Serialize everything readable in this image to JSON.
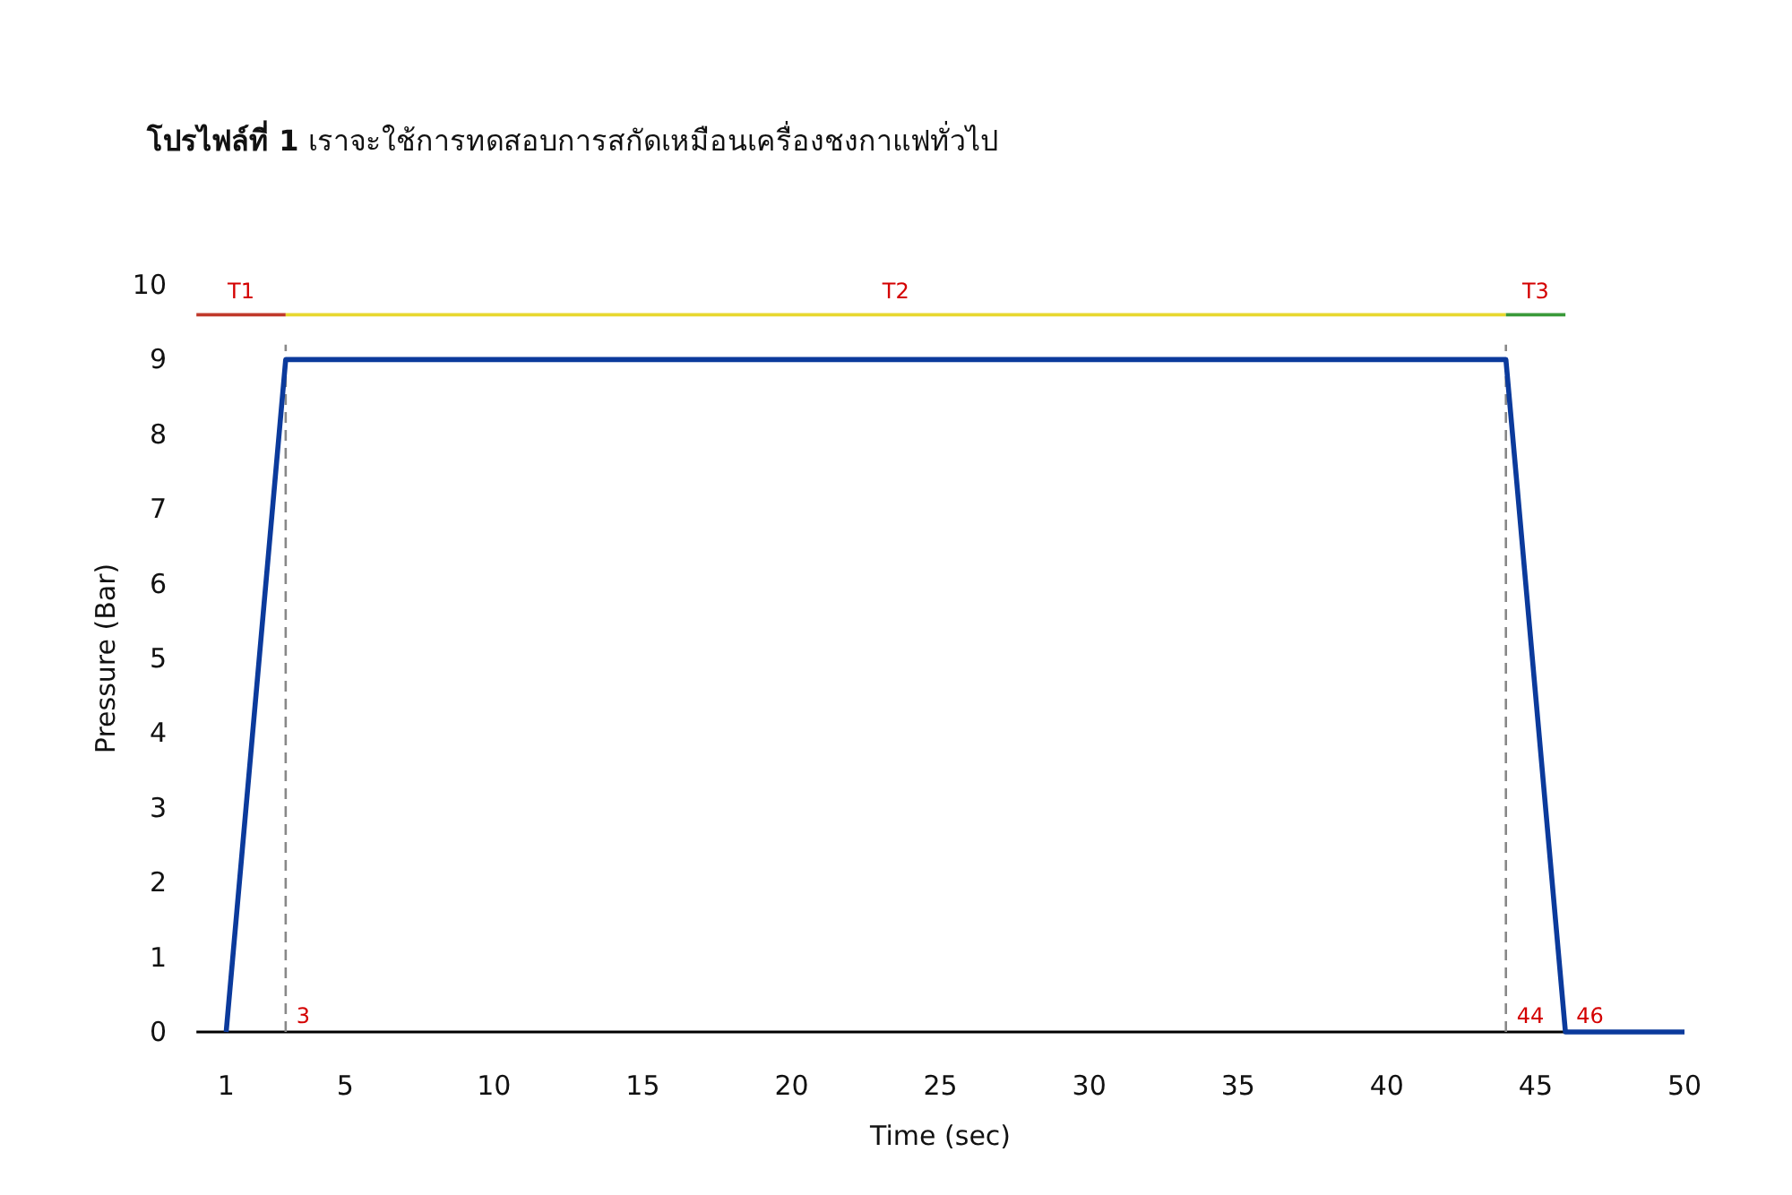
{
  "chart_data": {
    "type": "line",
    "title": "**โปรไฟล์ที่ 1** เราจะใช้การทดสอบการสกัดเหมือนเครื่องชงกาแฟทั่วไป",
    "xlabel": "Time (sec)",
    "ylabel": "Pressure (Bar)",
    "x": [
      1,
      3,
      44,
      46,
      50
    ],
    "series": [
      {
        "color": "#0b3a9c",
        "values": [
          0,
          9,
          9,
          0,
          0
        ]
      },
      {
        "name": "T1",
        "color": "#c0392b",
        "x": [
          0,
          3
        ],
        "values": [
          9.6,
          9.6
        ]
      },
      {
        "name": "T2",
        "color": "#e8d830",
        "x": [
          3,
          44
        ],
        "values": [
          9.6,
          9.6
        ]
      },
      {
        "name": "T3",
        "color": "#3a9a3a",
        "x": [
          44,
          46
        ],
        "values": [
          9.6,
          9.6
        ]
      }
    ],
    "xlim": [
      0,
      50
    ],
    "ylim": [
      0,
      10
    ],
    "xticks": [
      1,
      5,
      10,
      15,
      20,
      25,
      30,
      35,
      40,
      45,
      50
    ],
    "yticks": [
      0,
      1,
      2,
      3,
      4,
      5,
      6,
      7,
      8,
      9,
      10
    ],
    "ref_lines": [
      {
        "axis": "x",
        "value": 3,
        "label": "3",
        "color": "#888888",
        "line_style": "dashed"
      },
      {
        "axis": "x",
        "value": 44,
        "label": "44",
        "color": "#888888",
        "line_style": "dashed"
      }
    ],
    "annotations": [
      {
        "text": "46",
        "x": 46,
        "y": 0
      }
    ],
    "grid": false,
    "marker": "none",
    "line_style": "solid"
  }
}
